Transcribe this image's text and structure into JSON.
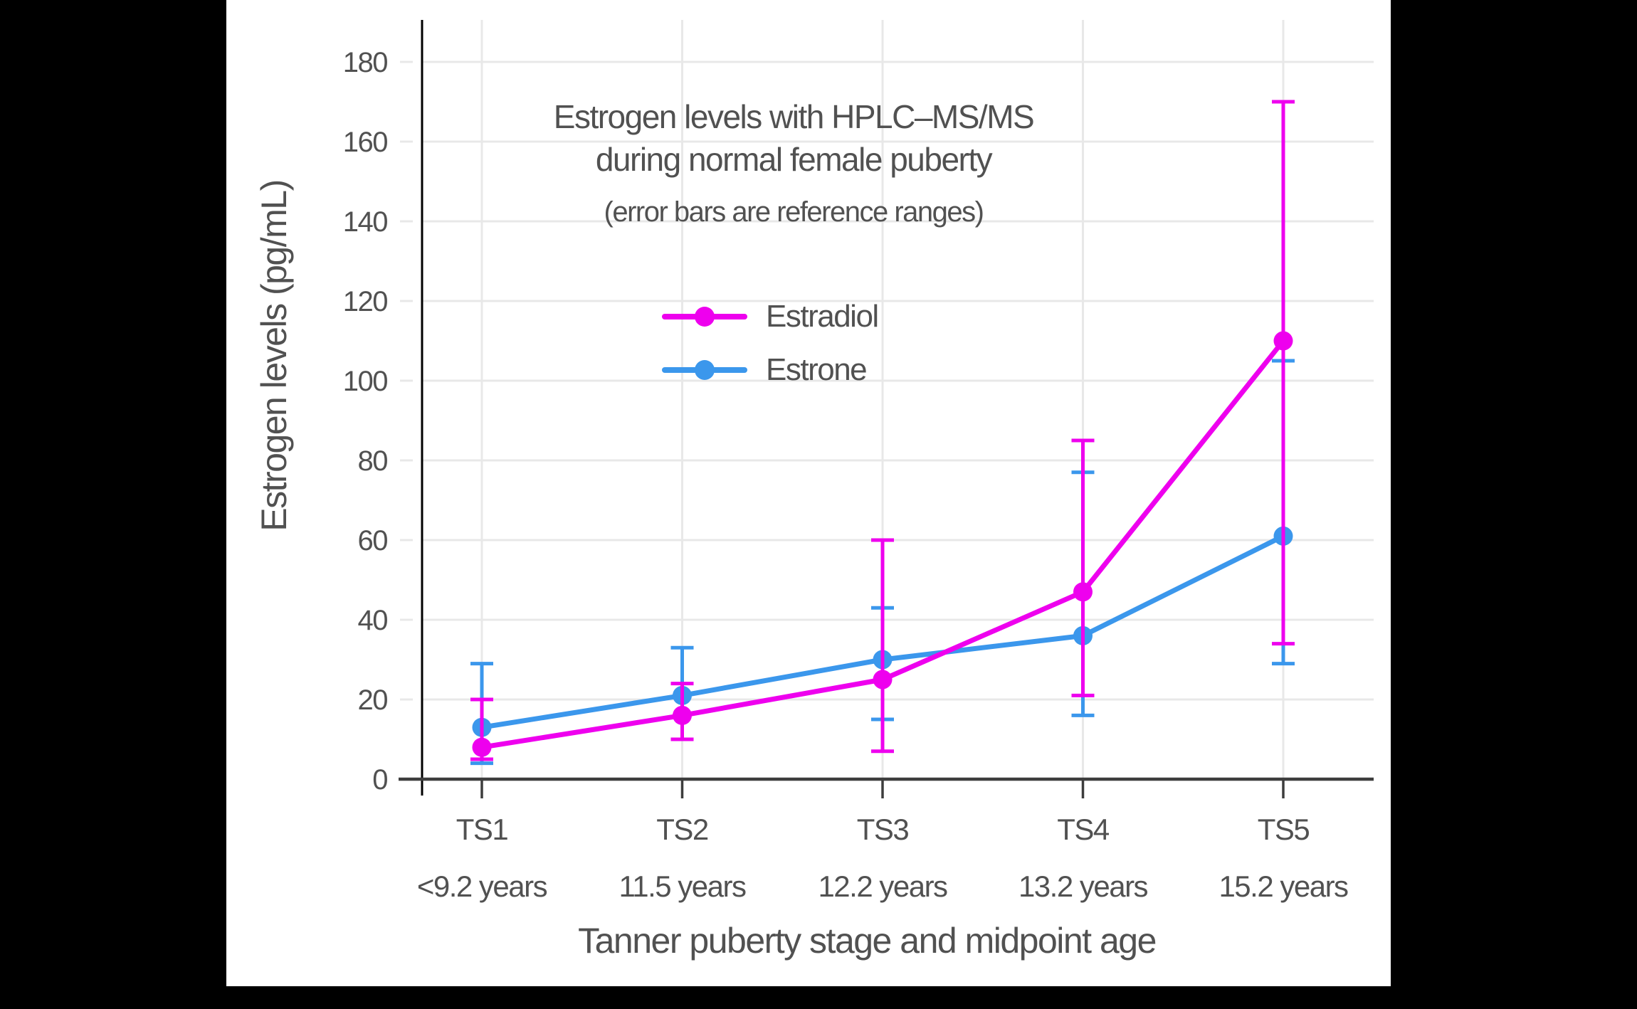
{
  "page": {
    "background": "#000000",
    "card_background": "#ffffff",
    "text_color": "#515151",
    "gridline_color": "#e8e8e8",
    "x_axis_color": "#3d3d3d",
    "y_axis_color": "#000000"
  },
  "title": {
    "line1": "Estrogen levels with HPLC–MS/MS",
    "line2": "during normal female puberty",
    "subtitle": "(error bars are reference ranges)"
  },
  "legend": [
    {
      "label": "Estradiol",
      "color": "#ee00ee"
    },
    {
      "label": "Estrone",
      "color": "#3b97ec"
    }
  ],
  "axes": {
    "y_title": "Estrogen levels (pg/mL)",
    "x_title": "Tanner puberty stage and midpoint age"
  },
  "chart_data": {
    "type": "line",
    "title": "Estrogen levels with HPLC–MS/MS during normal female puberty",
    "subtitle": "(error bars are reference ranges)",
    "xlabel": "Tanner puberty stage and midpoint age",
    "ylabel": "Estrogen levels (pg/mL)",
    "categories": [
      "TS1",
      "TS2",
      "TS3",
      "TS4",
      "TS5"
    ],
    "category_sublabels": [
      "<9.2 years",
      "11.5 years",
      "12.2 years",
      "13.2 years",
      "15.2 years"
    ],
    "ylim": [
      0,
      180
    ],
    "ytick_step": 20,
    "grid": true,
    "legend_position": "upper-left-inside",
    "error_bars": "reference ranges",
    "series": [
      {
        "name": "Estradiol",
        "color": "#ee00ee",
        "values": [
          8,
          16,
          25,
          47,
          110
        ],
        "error_low": [
          5,
          10,
          7,
          21,
          34
        ],
        "error_high": [
          20,
          24,
          60,
          85,
          170
        ]
      },
      {
        "name": "Estrone",
        "color": "#3b97ec",
        "values": [
          13,
          21,
          30,
          36,
          61
        ],
        "error_low": [
          4,
          10,
          15,
          16,
          29
        ],
        "error_high": [
          29,
          33,
          43,
          77,
          105
        ]
      }
    ]
  }
}
